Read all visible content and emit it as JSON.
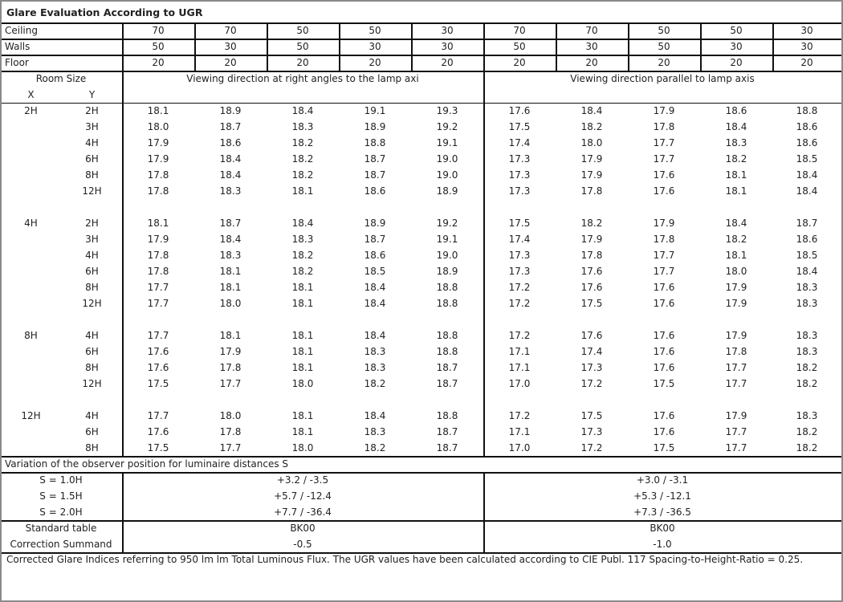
{
  "title": "Glare Evaluation According to UGR",
  "reflectances": [
    {
      "label": "Ceiling",
      "values": [
        "70",
        "70",
        "50",
        "50",
        "30",
        "70",
        "70",
        "50",
        "50",
        "30"
      ]
    },
    {
      "label": "Walls",
      "values": [
        "50",
        "30",
        "50",
        "30",
        "30",
        "50",
        "30",
        "50",
        "30",
        "30"
      ]
    },
    {
      "label": "Floor",
      "values": [
        "20",
        "20",
        "20",
        "20",
        "20",
        "20",
        "20",
        "20",
        "20",
        "20"
      ]
    }
  ],
  "room_size_label": "Room Size",
  "x_label": "X",
  "y_label": "Y",
  "direction_right_angles": "Viewing direction at right angles to the lamp axi",
  "direction_parallel": "Viewing direction parallel to lamp axis",
  "groups": [
    {
      "x": "2H",
      "rows": [
        {
          "y": "2H",
          "values": [
            "18.1",
            "18.9",
            "18.4",
            "19.1",
            "19.3",
            "17.6",
            "18.4",
            "17.9",
            "18.6",
            "18.8"
          ]
        },
        {
          "y": "3H",
          "values": [
            "18.0",
            "18.7",
            "18.3",
            "18.9",
            "19.2",
            "17.5",
            "18.2",
            "17.8",
            "18.4",
            "18.6"
          ]
        },
        {
          "y": "4H",
          "values": [
            "17.9",
            "18.6",
            "18.2",
            "18.8",
            "19.1",
            "17.4",
            "18.0",
            "17.7",
            "18.3",
            "18.6"
          ]
        },
        {
          "y": "6H",
          "values": [
            "17.9",
            "18.4",
            "18.2",
            "18.7",
            "19.0",
            "17.3",
            "17.9",
            "17.7",
            "18.2",
            "18.5"
          ]
        },
        {
          "y": "8H",
          "values": [
            "17.8",
            "18.4",
            "18.2",
            "18.7",
            "19.0",
            "17.3",
            "17.9",
            "17.6",
            "18.1",
            "18.4"
          ]
        },
        {
          "y": "12H",
          "values": [
            "17.8",
            "18.3",
            "18.1",
            "18.6",
            "18.9",
            "17.3",
            "17.8",
            "17.6",
            "18.1",
            "18.4"
          ]
        }
      ]
    },
    {
      "x": "4H",
      "rows": [
        {
          "y": "2H",
          "values": [
            "18.1",
            "18.7",
            "18.4",
            "18.9",
            "19.2",
            "17.5",
            "18.2",
            "17.9",
            "18.4",
            "18.7"
          ]
        },
        {
          "y": "3H",
          "values": [
            "17.9",
            "18.4",
            "18.3",
            "18.7",
            "19.1",
            "17.4",
            "17.9",
            "17.8",
            "18.2",
            "18.6"
          ]
        },
        {
          "y": "4H",
          "values": [
            "17.8",
            "18.3",
            "18.2",
            "18.6",
            "19.0",
            "17.3",
            "17.8",
            "17.7",
            "18.1",
            "18.5"
          ]
        },
        {
          "y": "6H",
          "values": [
            "17.8",
            "18.1",
            "18.2",
            "18.5",
            "18.9",
            "17.3",
            "17.6",
            "17.7",
            "18.0",
            "18.4"
          ]
        },
        {
          "y": "8H",
          "values": [
            "17.7",
            "18.1",
            "18.1",
            "18.4",
            "18.8",
            "17.2",
            "17.6",
            "17.6",
            "17.9",
            "18.3"
          ]
        },
        {
          "y": "12H",
          "values": [
            "17.7",
            "18.0",
            "18.1",
            "18.4",
            "18.8",
            "17.2",
            "17.5",
            "17.6",
            "17.9",
            "18.3"
          ]
        }
      ]
    },
    {
      "x": "8H",
      "rows": [
        {
          "y": "4H",
          "values": [
            "17.7",
            "18.1",
            "18.1",
            "18.4",
            "18.8",
            "17.2",
            "17.6",
            "17.6",
            "17.9",
            "18.3"
          ]
        },
        {
          "y": "6H",
          "values": [
            "17.6",
            "17.9",
            "18.1",
            "18.3",
            "18.8",
            "17.1",
            "17.4",
            "17.6",
            "17.8",
            "18.3"
          ]
        },
        {
          "y": "8H",
          "values": [
            "17.6",
            "17.8",
            "18.1",
            "18.3",
            "18.7",
            "17.1",
            "17.3",
            "17.6",
            "17.7",
            "18.2"
          ]
        },
        {
          "y": "12H",
          "values": [
            "17.5",
            "17.7",
            "18.0",
            "18.2",
            "18.7",
            "17.0",
            "17.2",
            "17.5",
            "17.7",
            "18.2"
          ]
        }
      ]
    },
    {
      "x": "12H",
      "rows": [
        {
          "y": "4H",
          "values": [
            "17.7",
            "18.0",
            "18.1",
            "18.4",
            "18.8",
            "17.2",
            "17.5",
            "17.6",
            "17.9",
            "18.3"
          ]
        },
        {
          "y": "6H",
          "values": [
            "17.6",
            "17.8",
            "18.1",
            "18.3",
            "18.7",
            "17.1",
            "17.3",
            "17.6",
            "17.7",
            "18.2"
          ]
        },
        {
          "y": "8H",
          "values": [
            "17.5",
            "17.7",
            "18.0",
            "18.2",
            "18.7",
            "17.0",
            "17.2",
            "17.5",
            "17.7",
            "18.2"
          ]
        }
      ]
    }
  ],
  "variation_heading": "Variation of the observer position for luminaire distances S",
  "variations": [
    {
      "label": "S = 1.0H",
      "right_angles": "+3.2 / -3.5",
      "parallel": "+3.0 / -3.1"
    },
    {
      "label": "S = 1.5H",
      "right_angles": "+5.7 / -12.4",
      "parallel": "+5.3 / -12.1"
    },
    {
      "label": "S = 2.0H",
      "right_angles": "+7.7 / -36.4",
      "parallel": "+7.3 / -36.5"
    }
  ],
  "standard_table": {
    "label": "Standard table",
    "right_angles": "BK00",
    "parallel": "BK00"
  },
  "correction_summand": {
    "label": "Correction Summand",
    "right_angles": "-0.5",
    "parallel": "-1.0"
  },
  "footer": "Corrected Glare Indices referring to 950 lm lm Total Luminous Flux. The UGR values have been calculated according to CIE Publ. 117    Spacing-to-Height-Ratio = 0.25."
}
